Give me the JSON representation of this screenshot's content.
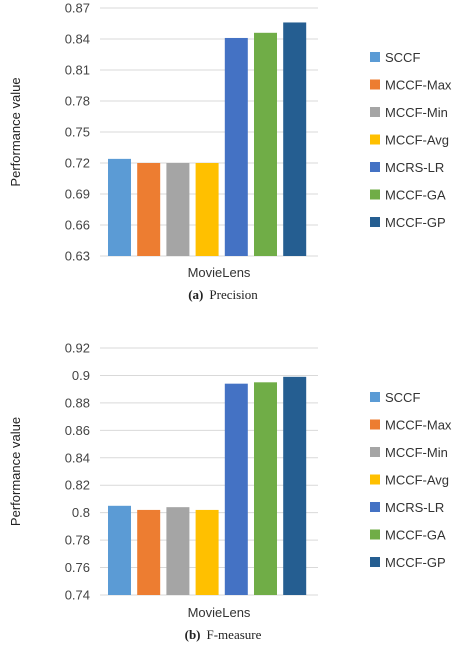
{
  "colors": [
    "#5B9BD5",
    "#ED7D31",
    "#A5A5A5",
    "#FFC000",
    "#4472C4",
    "#70AD47",
    "#255E91"
  ],
  "chart_data": [
    {
      "type": "bar",
      "categories": [
        "MovieLens"
      ],
      "series": [
        {
          "name": "SCCF",
          "values": [
            0.724
          ]
        },
        {
          "name": "MCCF-Max",
          "values": [
            0.72
          ]
        },
        {
          "name": "MCCF-Min",
          "values": [
            0.72
          ]
        },
        {
          "name": "MCCF-Avg",
          "values": [
            0.72
          ]
        },
        {
          "name": "MCRS-LR",
          "values": [
            0.841
          ]
        },
        {
          "name": "MCCF-GA",
          "values": [
            0.846
          ]
        },
        {
          "name": "MCCF-GP",
          "values": [
            0.856
          ]
        }
      ],
      "ylabel": "Performance value",
      "ylim": [
        0.63,
        0.87
      ],
      "yticks": [
        "0.63",
        "0.66",
        "0.69",
        "0.72",
        "0.75",
        "0.78",
        "0.81",
        "0.84",
        "0.87"
      ],
      "grid": true,
      "legend": "right",
      "caption_label": "(a)",
      "caption_text": "Precision"
    },
    {
      "type": "bar",
      "categories": [
        "MovieLens"
      ],
      "series": [
        {
          "name": "SCCF",
          "values": [
            0.805
          ]
        },
        {
          "name": "MCCF-Max",
          "values": [
            0.802
          ]
        },
        {
          "name": "MCCF-Min",
          "values": [
            0.804
          ]
        },
        {
          "name": "MCCF-Avg",
          "values": [
            0.802
          ]
        },
        {
          "name": "MCRS-LR",
          "values": [
            0.894
          ]
        },
        {
          "name": "MCCF-GA",
          "values": [
            0.895
          ]
        },
        {
          "name": "MCCF-GP",
          "values": [
            0.899
          ]
        }
      ],
      "ylabel": "Performance value",
      "ylim": [
        0.74,
        0.92
      ],
      "yticks": [
        "0.74",
        "0.76",
        "0.78",
        "0.8",
        "0.82",
        "0.84",
        "0.86",
        "0.88",
        "0.9",
        "0.92"
      ],
      "grid": true,
      "legend": "right",
      "caption_label": "(b)",
      "caption_text": "F-measure"
    }
  ]
}
